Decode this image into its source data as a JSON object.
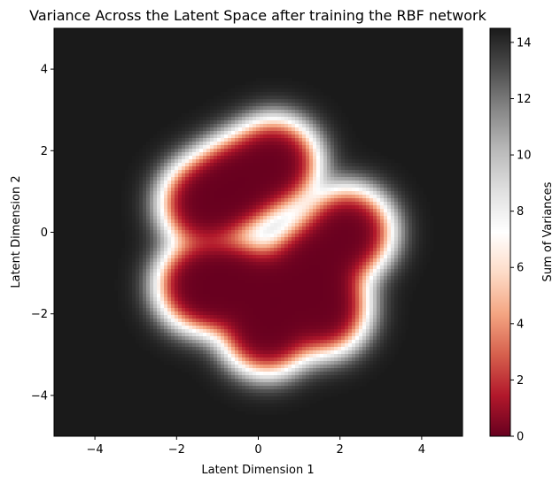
{
  "chart_data": {
    "type": "heatmap",
    "title": "Variance Across the Latent Space after training the RBF network",
    "xlabel": "Latent Dimension 1",
    "ylabel": "Latent Dimension 2",
    "xlim": [
      -5,
      5
    ],
    "ylim": [
      -5,
      5
    ],
    "xticks": [
      -4,
      -2,
      0,
      2,
      4
    ],
    "yticks": [
      -4,
      -2,
      0,
      2,
      4
    ],
    "xtick_labels": [
      "−4",
      "−2",
      "0",
      "2",
      "4"
    ],
    "ytick_labels": [
      "−4",
      "−2",
      "0",
      "2",
      "4"
    ],
    "grid": false,
    "background_value": 14.5,
    "colorbar": {
      "label": "Sum of Variances",
      "range": [
        0,
        14.5
      ],
      "ticks": [
        0,
        2,
        4,
        6,
        8,
        10,
        12,
        14
      ],
      "tick_labels": [
        "0",
        "2",
        "4",
        "6",
        "8",
        "10",
        "12",
        "14"
      ],
      "colormap": "RdGy",
      "stops": [
        {
          "t": 0.0,
          "color": "#67001f"
        },
        {
          "t": 0.1,
          "color": "#b2182b"
        },
        {
          "t": 0.2,
          "color": "#d6604d"
        },
        {
          "t": 0.3,
          "color": "#f4a582"
        },
        {
          "t": 0.4,
          "color": "#fddbc7"
        },
        {
          "t": 0.5,
          "color": "#ffffff"
        },
        {
          "t": 0.6,
          "color": "#e0e0e0"
        },
        {
          "t": 0.7,
          "color": "#bababa"
        },
        {
          "t": 0.8,
          "color": "#878787"
        },
        {
          "t": 0.9,
          "color": "#4d4d4d"
        },
        {
          "t": 1.0,
          "color": "#1a1a1a"
        }
      ]
    },
    "low_variance_clusters": [
      {
        "x": -0.5,
        "y": 1.2
      },
      {
        "x": 0.4,
        "y": 1.7
      },
      {
        "x": -1.3,
        "y": 0.7
      },
      {
        "x": -0.6,
        "y": -1.3
      },
      {
        "x": -1.4,
        "y": -1.3
      },
      {
        "x": 0.5,
        "y": -1.5
      },
      {
        "x": 1.4,
        "y": -0.8
      },
      {
        "x": 2.2,
        "y": 0.0
      },
      {
        "x": 0.2,
        "y": -2.4
      },
      {
        "x": 1.6,
        "y": -1.9
      }
    ]
  }
}
